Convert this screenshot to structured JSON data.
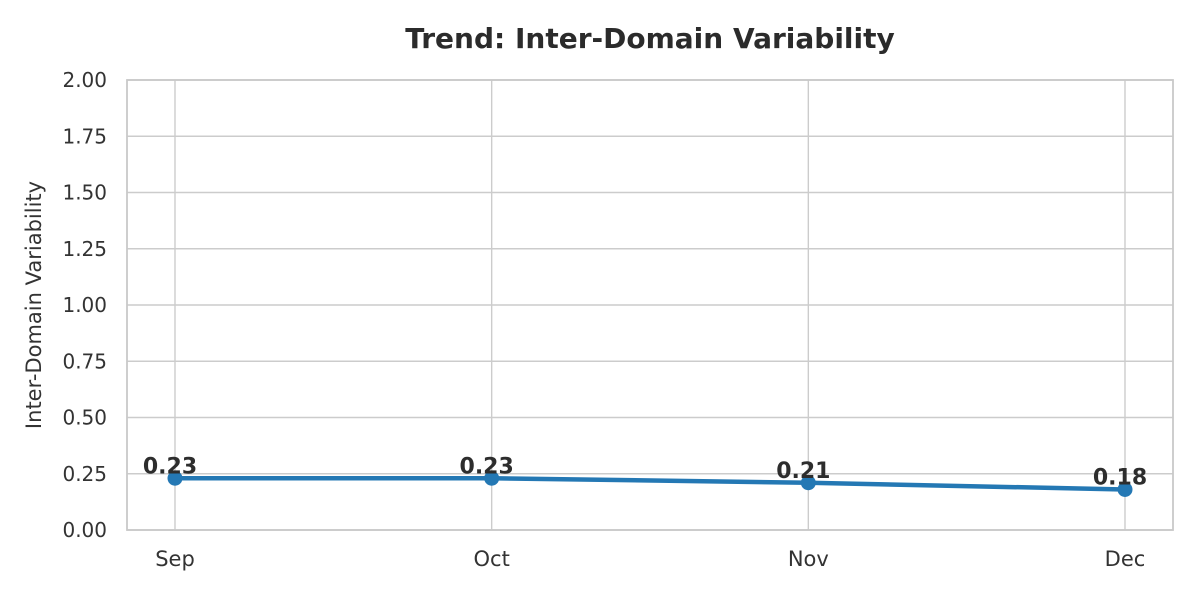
{
  "chart_data": {
    "type": "line",
    "title": "Trend: Inter-Domain Variability",
    "xlabel": "",
    "ylabel": "Inter-Domain Variability",
    "categories": [
      "Sep",
      "Oct",
      "Nov",
      "Dec"
    ],
    "series": [
      {
        "name": "Inter-Domain Variability",
        "values": [
          0.23,
          0.23,
          0.21,
          0.18
        ],
        "point_labels": [
          "0.23",
          "0.23",
          "0.21",
          "0.18"
        ]
      }
    ],
    "ylim": [
      0.0,
      2.0
    ],
    "ytick_step": 0.25,
    "ytick_labels": [
      "0.00",
      "0.25",
      "0.50",
      "0.75",
      "1.00",
      "1.25",
      "1.50",
      "1.75",
      "2.00"
    ],
    "grid": true,
    "legend_position": "none",
    "colors": {
      "line": "#2478b4",
      "marker": "#2478b4",
      "grid": "#cccccc",
      "spine": "#c9c9c9",
      "tick_text": "#333333",
      "data_label_text": "#2d2d2d",
      "title_text": "#2b2b2b",
      "background": "#ffffff"
    }
  }
}
